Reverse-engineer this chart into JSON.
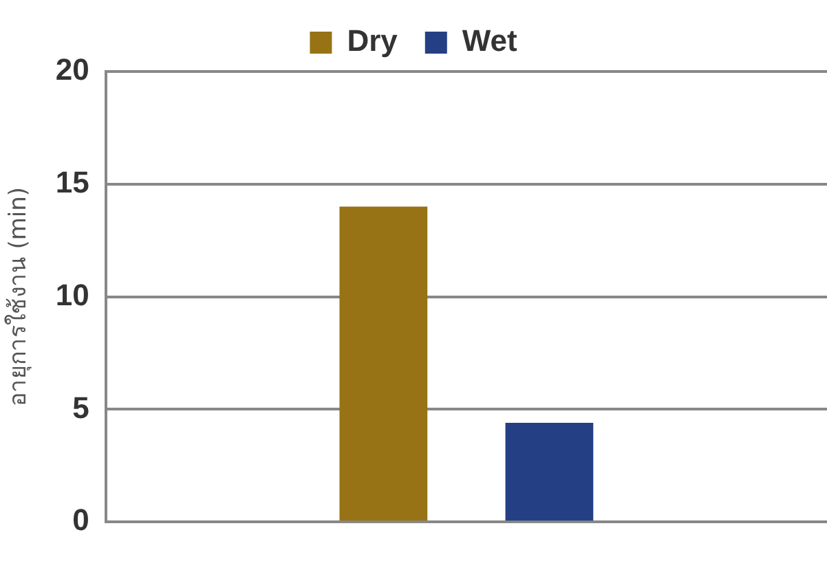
{
  "chart_data": {
    "type": "bar",
    "ylabel": "อายุการใช้งาน (min)",
    "categories": [
      null
    ],
    "series": [
      {
        "name": "Dry",
        "color": "#977316",
        "values": [
          14
        ]
      },
      {
        "name": "Wet",
        "color": "#253f85",
        "values": [
          4.4
        ]
      }
    ],
    "ylim": [
      0,
      20
    ],
    "yticks": [
      0,
      5,
      10,
      15,
      20
    ],
    "grid": "y",
    "legend": "top"
  }
}
